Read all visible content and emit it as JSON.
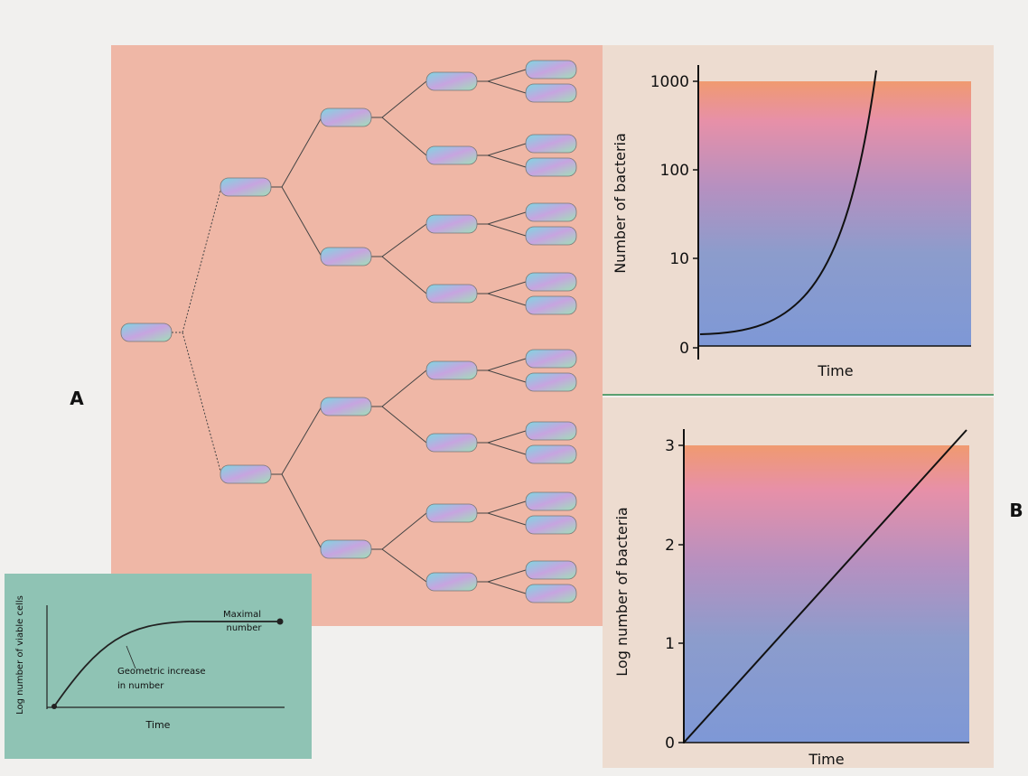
{
  "labels": {
    "panel_a": "A",
    "panel_b": "B"
  },
  "top_chart": {
    "y_label": "Number of bacteria",
    "x_label": "Time",
    "y_ticks": [
      "1000",
      "100",
      "10",
      "0"
    ]
  },
  "bottom_chart": {
    "y_label": "Log number of bacteria",
    "x_label": "Time",
    "y_ticks": [
      "3",
      "2",
      "1",
      "0"
    ]
  },
  "inset": {
    "y_label": "Log number of viable cells",
    "x_label": "Time",
    "maximal": [
      "Maximal",
      "number"
    ],
    "geometric": [
      "Geometric increase",
      "in number"
    ]
  }
}
